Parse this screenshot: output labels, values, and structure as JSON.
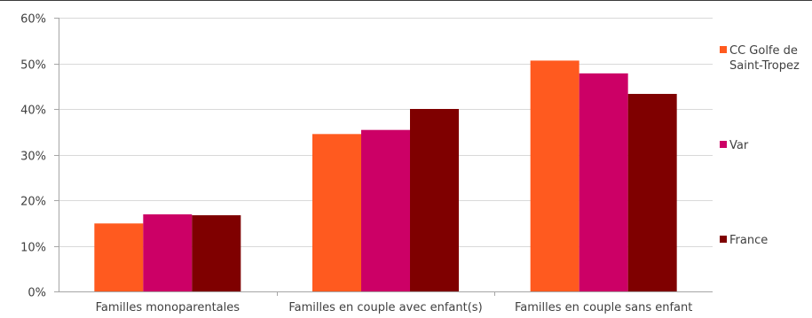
{
  "chart_data": {
    "type": "bar",
    "title": "",
    "xlabel": "",
    "ylabel": "",
    "categories": [
      "Familles monoparentales",
      "Familles en couple avec enfant(s)",
      "Familles en couple sans enfant"
    ],
    "series": [
      {
        "name": "CC Golfe de Saint-Tropez",
        "name_lines": [
          "CC Golfe de",
          "Saint-Tropez"
        ],
        "color": "#ff5a1f",
        "values": [
          14.9,
          34.5,
          50.6
        ]
      },
      {
        "name": "Var",
        "name_lines": [
          "Var"
        ],
        "color": "#cc0066",
        "values": [
          16.9,
          35.4,
          47.8
        ]
      },
      {
        "name": "France",
        "name_lines": [
          "France"
        ],
        "color": "#7f0000",
        "values": [
          16.7,
          40.0,
          43.3
        ]
      }
    ],
    "ylim": [
      0,
      60
    ],
    "yticks": [
      "0%",
      "10%",
      "20%",
      "30%",
      "40%",
      "50%",
      "60%"
    ],
    "grid": true,
    "legend": "right"
  }
}
